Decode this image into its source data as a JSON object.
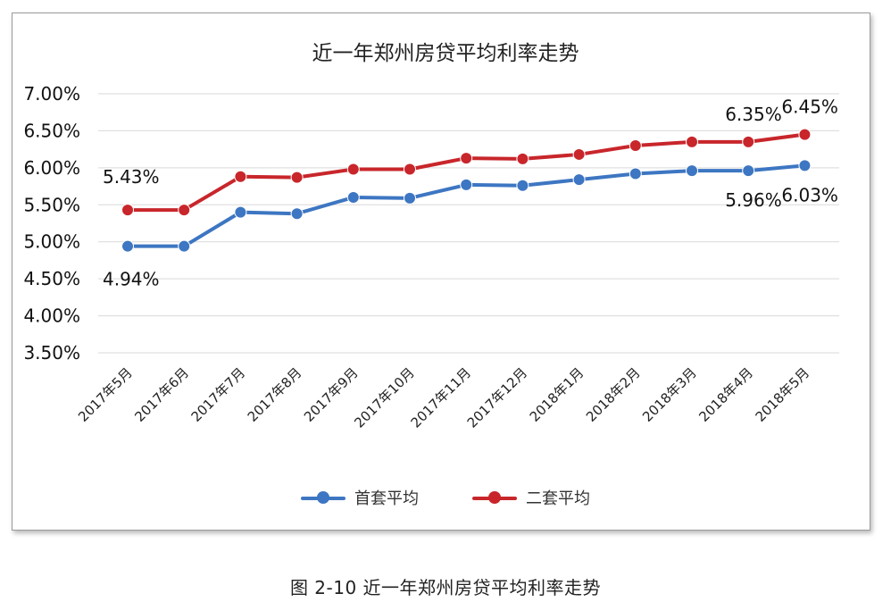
{
  "caption": "图 2-10  近一年郑州房贷平均利率走势",
  "chart_data": {
    "type": "line",
    "title": "近一年郑州房贷平均利率走势",
    "categories": [
      "2017年5月",
      "2017年6月",
      "2017年7月",
      "2017年8月",
      "2017年9月",
      "2017年10月",
      "2017年11月",
      "2017年12月",
      "2018年1月",
      "2018年2月",
      "2018年3月",
      "2018年4月",
      "2018年5月"
    ],
    "series": [
      {
        "name": "首套平均",
        "color": "#3d76c2",
        "values": [
          4.94,
          4.94,
          5.4,
          5.38,
          5.6,
          5.59,
          5.77,
          5.76,
          5.84,
          5.92,
          5.96,
          5.96,
          6.03
        ]
      },
      {
        "name": "二套平均",
        "color": "#c8262b",
        "values": [
          5.43,
          5.43,
          5.88,
          5.87,
          5.98,
          5.98,
          6.13,
          6.12,
          6.18,
          6.3,
          6.35,
          6.35,
          6.45
        ]
      }
    ],
    "ylim": [
      3.5,
      7.0
    ],
    "yticks": [
      "3.50%",
      "4.00%",
      "4.50%",
      "5.00%",
      "5.50%",
      "6.00%",
      "6.50%",
      "7.00%"
    ],
    "data_labels": [
      {
        "series": 0,
        "index": 0,
        "text": "4.94%"
      },
      {
        "series": 1,
        "index": 0,
        "text": "5.43%"
      },
      {
        "series": 0,
        "index": 11,
        "text": "5.96%"
      },
      {
        "series": 0,
        "index": 12,
        "text": "6.03%"
      },
      {
        "series": 1,
        "index": 11,
        "text": "6.35%"
      },
      {
        "series": 1,
        "index": 12,
        "text": "6.45%"
      }
    ],
    "grid": true,
    "legend": "bottom"
  }
}
